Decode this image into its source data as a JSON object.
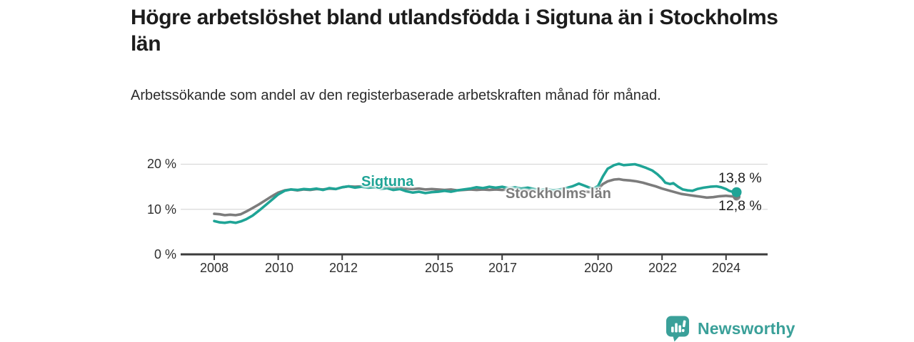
{
  "header": {
    "title": "Högre arbetslöshet bland utlandsfödda i Sigtuna än i Stockholms län",
    "subtitle": "Arbetssökande som andel av den registerbaserade arbetskraften månad för månad."
  },
  "chart_data": {
    "type": "line",
    "title": "Högre arbetslöshet bland utlandsfödda i Sigtuna än i Stockholms län",
    "subtitle": "Arbetssökande som andel av den registerbaserade arbetskraften månad för månad.",
    "xlabel": "",
    "ylabel": "",
    "xlim": [
      2006.95,
      2025.3
    ],
    "ylim": [
      0,
      22.45
    ],
    "grid": "horizontal-light",
    "grid_color": "#d9d9d9",
    "axis_color": "#3c3c3c",
    "x_ticks": [
      {
        "value": 2008,
        "label": "2008"
      },
      {
        "value": 2010,
        "label": "2010"
      },
      {
        "value": 2012,
        "label": "2012"
      },
      {
        "value": 2015,
        "label": "2015"
      },
      {
        "value": 2017,
        "label": "2017"
      },
      {
        "value": 2020,
        "label": "2020"
      },
      {
        "value": 2022,
        "label": "2022"
      },
      {
        "value": 2024,
        "label": "2024"
      }
    ],
    "y_ticks": [
      {
        "value": 0,
        "label": "0 %"
      },
      {
        "value": 10,
        "label": "10 %"
      },
      {
        "value": 20,
        "label": "20 %"
      }
    ],
    "series": [
      {
        "name": "Stockholms län",
        "color": "#7c7c7c",
        "end_label": "12,8 %",
        "end_value": 12.8,
        "points": [
          [
            2008.0,
            9.0
          ],
          [
            2008.17,
            8.9
          ],
          [
            2008.33,
            8.7
          ],
          [
            2008.5,
            8.8
          ],
          [
            2008.67,
            8.7
          ],
          [
            2008.83,
            8.9
          ],
          [
            2009.0,
            9.5
          ],
          [
            2009.2,
            10.3
          ],
          [
            2009.4,
            11.1
          ],
          [
            2009.6,
            12.0
          ],
          [
            2009.8,
            12.9
          ],
          [
            2010.0,
            13.7
          ],
          [
            2010.2,
            14.2
          ],
          [
            2010.4,
            14.4
          ],
          [
            2010.6,
            14.2
          ],
          [
            2010.8,
            14.4
          ],
          [
            2011.0,
            14.3
          ],
          [
            2011.2,
            14.5
          ],
          [
            2011.4,
            14.4
          ],
          [
            2011.6,
            14.6
          ],
          [
            2011.8,
            14.5
          ],
          [
            2012.0,
            14.9
          ],
          [
            2012.2,
            15.1
          ],
          [
            2012.4,
            15.0
          ],
          [
            2012.6,
            15.1
          ],
          [
            2012.8,
            14.9
          ],
          [
            2013.0,
            15.0
          ],
          [
            2013.2,
            14.8
          ],
          [
            2013.4,
            14.9
          ],
          [
            2013.6,
            14.7
          ],
          [
            2013.8,
            14.8
          ],
          [
            2014.0,
            14.6
          ],
          [
            2014.2,
            14.5
          ],
          [
            2014.4,
            14.6
          ],
          [
            2014.6,
            14.4
          ],
          [
            2014.8,
            14.5
          ],
          [
            2015.0,
            14.4
          ],
          [
            2015.2,
            14.3
          ],
          [
            2015.4,
            14.4
          ],
          [
            2015.6,
            14.2
          ],
          [
            2015.8,
            14.3
          ],
          [
            2016.0,
            14.4
          ],
          [
            2016.2,
            14.3
          ],
          [
            2016.4,
            14.4
          ],
          [
            2016.6,
            14.3
          ],
          [
            2016.8,
            14.4
          ],
          [
            2017.0,
            14.3
          ],
          [
            2017.2,
            14.4
          ],
          [
            2017.4,
            14.2
          ],
          [
            2017.6,
            14.3
          ],
          [
            2017.8,
            14.1
          ],
          [
            2018.0,
            14.2
          ],
          [
            2018.2,
            14.0
          ],
          [
            2018.4,
            14.1
          ],
          [
            2018.6,
            13.9
          ],
          [
            2018.8,
            14.0
          ],
          [
            2019.0,
            13.9
          ],
          [
            2019.2,
            14.0
          ],
          [
            2019.4,
            13.8
          ],
          [
            2019.6,
            13.9
          ],
          [
            2019.8,
            13.8
          ],
          [
            2020.0,
            14.5
          ],
          [
            2020.15,
            15.6
          ],
          [
            2020.3,
            16.2
          ],
          [
            2020.5,
            16.6
          ],
          [
            2020.65,
            16.7
          ],
          [
            2020.8,
            16.5
          ],
          [
            2021.0,
            16.4
          ],
          [
            2021.2,
            16.2
          ],
          [
            2021.4,
            15.9
          ],
          [
            2021.6,
            15.5
          ],
          [
            2021.8,
            15.1
          ],
          [
            2022.0,
            14.6
          ],
          [
            2022.2,
            14.2
          ],
          [
            2022.4,
            13.8
          ],
          [
            2022.6,
            13.4
          ],
          [
            2022.8,
            13.2
          ],
          [
            2023.0,
            13.0
          ],
          [
            2023.2,
            12.8
          ],
          [
            2023.4,
            12.6
          ],
          [
            2023.6,
            12.7
          ],
          [
            2023.8,
            12.9
          ],
          [
            2024.0,
            13.0
          ],
          [
            2024.15,
            12.9
          ],
          [
            2024.33,
            12.8
          ]
        ]
      },
      {
        "name": "Sigtuna",
        "color": "#1fa496",
        "end_label": "13,8 %",
        "end_value": 13.8,
        "points": [
          [
            2008.0,
            7.4
          ],
          [
            2008.17,
            7.1
          ],
          [
            2008.33,
            7.0
          ],
          [
            2008.5,
            7.2
          ],
          [
            2008.67,
            7.0
          ],
          [
            2008.83,
            7.3
          ],
          [
            2009.0,
            7.8
          ],
          [
            2009.2,
            8.6
          ],
          [
            2009.4,
            9.7
          ],
          [
            2009.6,
            10.9
          ],
          [
            2009.8,
            12.1
          ],
          [
            2010.0,
            13.3
          ],
          [
            2010.2,
            14.1
          ],
          [
            2010.4,
            14.4
          ],
          [
            2010.6,
            14.3
          ],
          [
            2010.8,
            14.5
          ],
          [
            2011.0,
            14.4
          ],
          [
            2011.2,
            14.6
          ],
          [
            2011.4,
            14.3
          ],
          [
            2011.6,
            14.7
          ],
          [
            2011.8,
            14.5
          ],
          [
            2012.0,
            14.9
          ],
          [
            2012.2,
            15.1
          ],
          [
            2012.4,
            14.8
          ],
          [
            2012.6,
            15.0
          ],
          [
            2012.8,
            14.8
          ],
          [
            2013.0,
            14.9
          ],
          [
            2013.2,
            14.5
          ],
          [
            2013.4,
            14.7
          ],
          [
            2013.6,
            14.3
          ],
          [
            2013.8,
            14.5
          ],
          [
            2014.0,
            14.0
          ],
          [
            2014.2,
            13.7
          ],
          [
            2014.4,
            13.9
          ],
          [
            2014.6,
            13.6
          ],
          [
            2014.8,
            13.8
          ],
          [
            2015.0,
            13.9
          ],
          [
            2015.2,
            14.1
          ],
          [
            2015.4,
            13.9
          ],
          [
            2015.6,
            14.2
          ],
          [
            2015.8,
            14.4
          ],
          [
            2016.0,
            14.6
          ],
          [
            2016.2,
            14.9
          ],
          [
            2016.4,
            14.7
          ],
          [
            2016.6,
            15.0
          ],
          [
            2016.8,
            14.8
          ],
          [
            2017.0,
            15.0
          ],
          [
            2017.2,
            14.7
          ],
          [
            2017.4,
            14.9
          ],
          [
            2017.6,
            14.6
          ],
          [
            2017.8,
            14.8
          ],
          [
            2018.0,
            14.5
          ],
          [
            2018.2,
            14.3
          ],
          [
            2018.4,
            14.5
          ],
          [
            2018.6,
            14.2
          ],
          [
            2018.8,
            14.4
          ],
          [
            2019.0,
            14.7
          ],
          [
            2019.2,
            15.1
          ],
          [
            2019.4,
            15.7
          ],
          [
            2019.55,
            15.3
          ],
          [
            2019.7,
            14.9
          ],
          [
            2019.85,
            14.6
          ],
          [
            2020.0,
            15.2
          ],
          [
            2020.15,
            17.3
          ],
          [
            2020.3,
            19.0
          ],
          [
            2020.5,
            19.8
          ],
          [
            2020.65,
            20.1
          ],
          [
            2020.8,
            19.8
          ],
          [
            2021.0,
            19.9
          ],
          [
            2021.15,
            20.0
          ],
          [
            2021.3,
            19.7
          ],
          [
            2021.5,
            19.2
          ],
          [
            2021.7,
            18.6
          ],
          [
            2021.85,
            17.8
          ],
          [
            2022.0,
            16.8
          ],
          [
            2022.1,
            15.9
          ],
          [
            2022.25,
            15.6
          ],
          [
            2022.35,
            15.8
          ],
          [
            2022.5,
            15.0
          ],
          [
            2022.65,
            14.4
          ],
          [
            2022.8,
            14.2
          ],
          [
            2022.95,
            14.1
          ],
          [
            2023.1,
            14.5
          ],
          [
            2023.3,
            14.8
          ],
          [
            2023.5,
            15.0
          ],
          [
            2023.7,
            15.1
          ],
          [
            2023.85,
            14.9
          ],
          [
            2024.0,
            14.5
          ],
          [
            2024.1,
            14.1
          ],
          [
            2024.2,
            13.9
          ],
          [
            2024.33,
            13.8
          ]
        ]
      }
    ]
  },
  "footer": {
    "brand": "Newsworthy",
    "brand_color": "#3aa099"
  }
}
